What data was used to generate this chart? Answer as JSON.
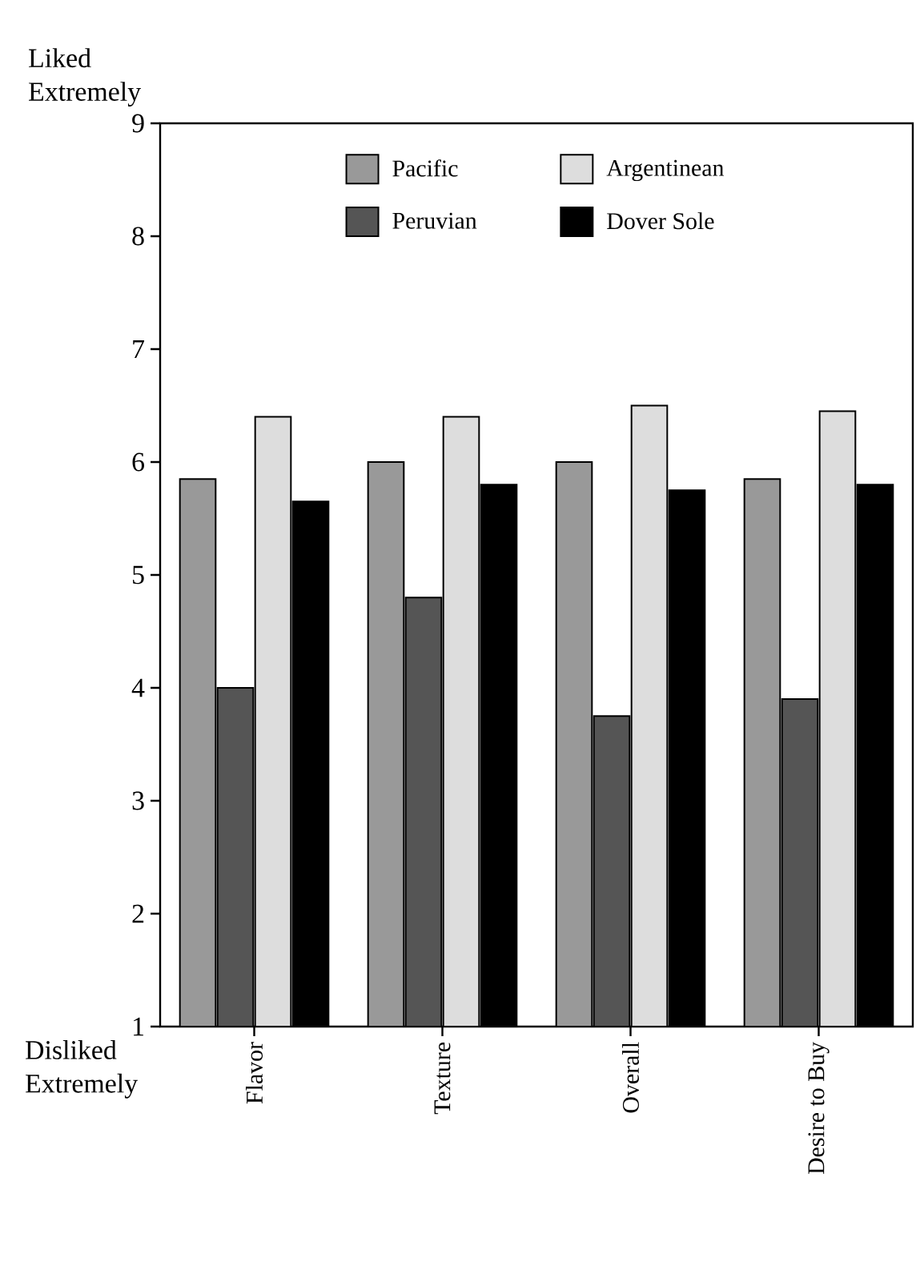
{
  "chart_data": {
    "type": "bar",
    "categories": [
      "Flavor",
      "Texture",
      "Overall",
      "Desire to Buy"
    ],
    "series": [
      {
        "name": "Pacific",
        "color": "#999999",
        "values": [
          5.85,
          6.0,
          6.0,
          5.85
        ]
      },
      {
        "name": "Peruvian",
        "color": "#555555",
        "values": [
          4.0,
          4.8,
          3.75,
          3.9
        ]
      },
      {
        "name": "Argentinean",
        "color": "#dddddd",
        "values": [
          6.4,
          6.4,
          6.5,
          6.45
        ]
      },
      {
        "name": "Dover Sole",
        "color": "#000000",
        "values": [
          5.65,
          5.8,
          5.75,
          5.8
        ]
      }
    ],
    "ylim": [
      1,
      9
    ],
    "yticks": [
      1,
      2,
      3,
      4,
      5,
      6,
      7,
      8,
      9
    ],
    "legend": "top",
    "grid": false,
    "annotations": [
      "Liked Extremely",
      "Disliked Extremely"
    ]
  }
}
